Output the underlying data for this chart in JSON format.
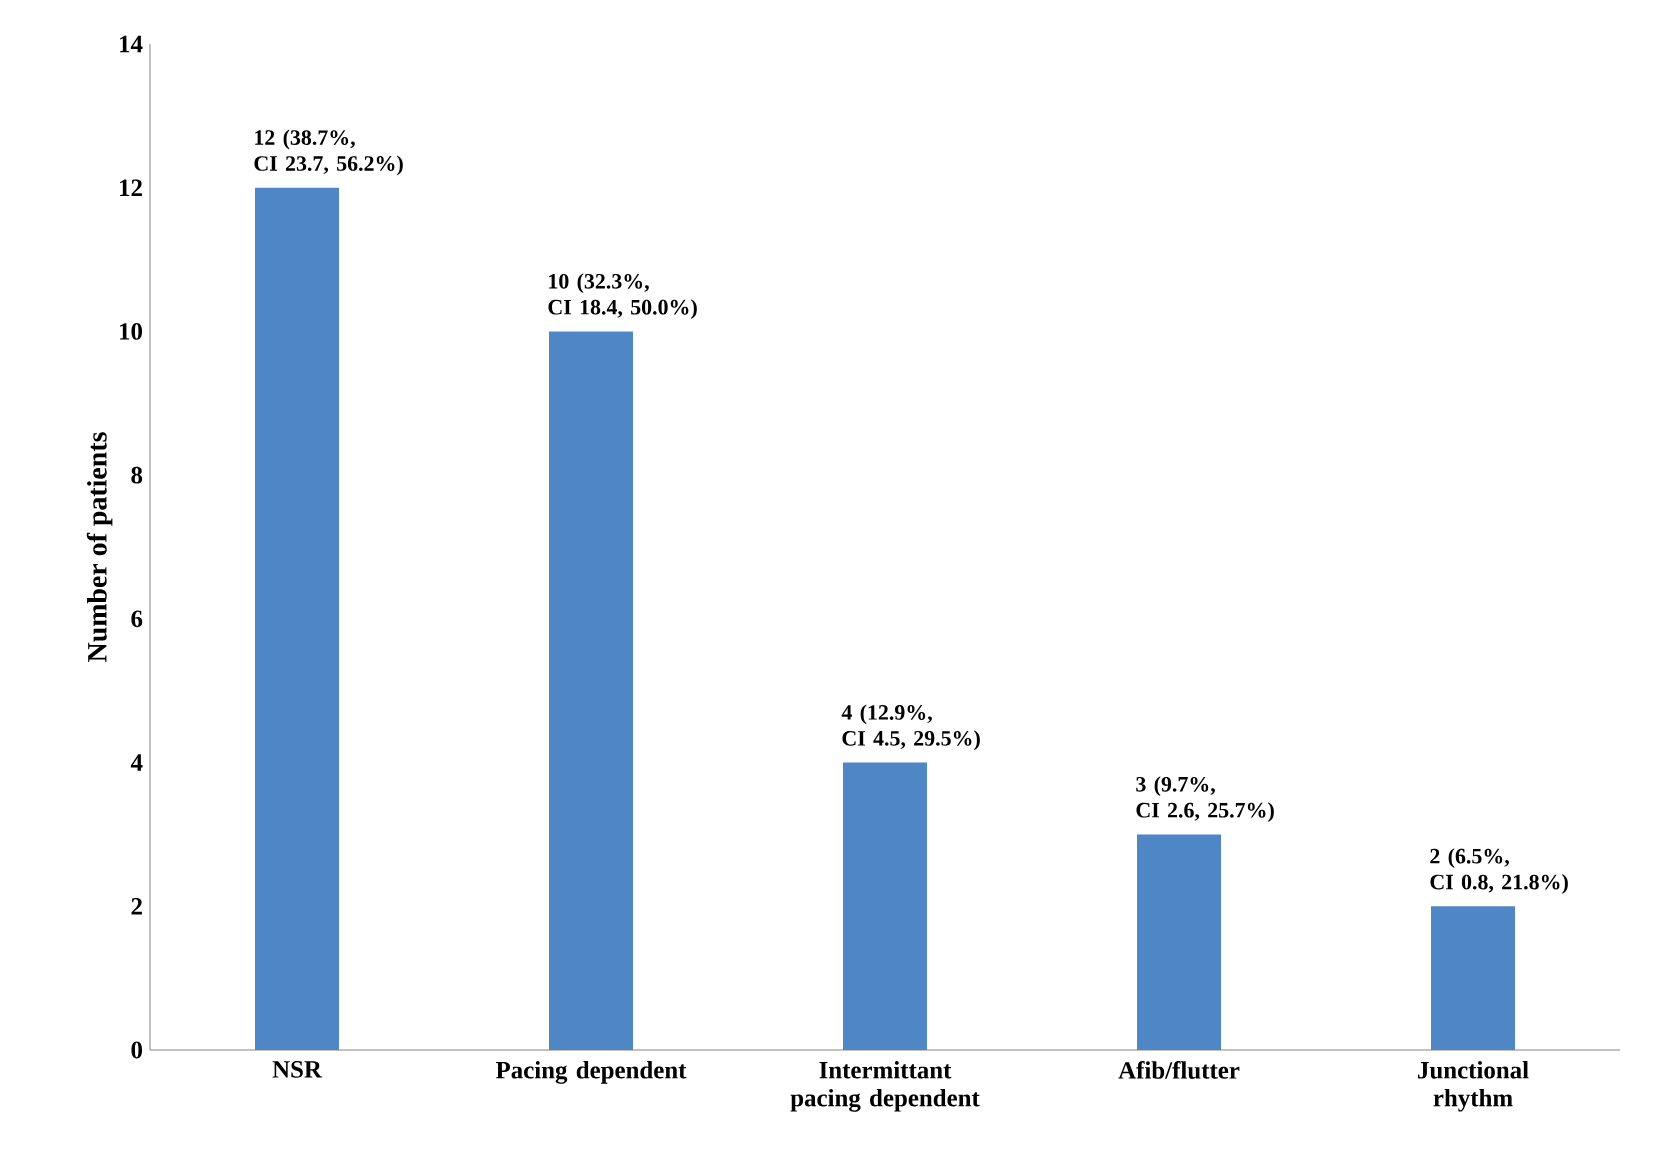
{
  "chart_data": {
    "type": "bar",
    "ylabel": "Number of patients",
    "categories": [
      "NSR",
      "Pacing dependent",
      "Intermittant pacing dependent",
      "Afib/flutter",
      "Junctional rhythm"
    ],
    "values": [
      12,
      10,
      4,
      3,
      2
    ],
    "value_labels": [
      "12 (38.7%, CI 23.7, 56.2%)",
      "10 (32.3%, CI 18.4, 50.0%)",
      "4 (12.9%, CI 4.5, 29.5%)",
      "3 (9.7%, CI 2.6, 25.7%)",
      "2 (6.5%, CI 0.8, 21.8%)"
    ],
    "color": "#4f86c6",
    "ylim": [
      0,
      14
    ],
    "yticks": [
      0,
      2,
      4,
      6,
      8,
      10,
      12,
      14
    ]
  }
}
